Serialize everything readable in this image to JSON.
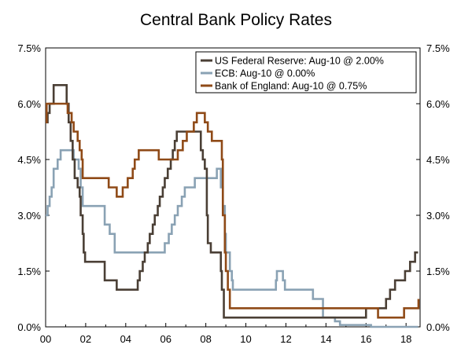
{
  "chart_data": {
    "type": "line",
    "title": "Central Bank Policy Rates",
    "xlabel": "",
    "ylabel": "",
    "xlim": [
      2000,
      2018.7
    ],
    "ylim": [
      0,
      7.5
    ],
    "x_ticks": [
      {
        "value": 2000,
        "label": "00"
      },
      {
        "value": 2002,
        "label": "02"
      },
      {
        "value": 2004,
        "label": "04"
      },
      {
        "value": 2006,
        "label": "06"
      },
      {
        "value": 2008,
        "label": "08"
      },
      {
        "value": 2010,
        "label": "10"
      },
      {
        "value": 2012,
        "label": "12"
      },
      {
        "value": 2014,
        "label": "14"
      },
      {
        "value": 2016,
        "label": "16"
      },
      {
        "value": 2018,
        "label": "18"
      }
    ],
    "y_ticks": [
      {
        "value": 0,
        "label": "0.0%"
      },
      {
        "value": 1.5,
        "label": "1.5%"
      },
      {
        "value": 3,
        "label": "3.0%"
      },
      {
        "value": 4.5,
        "label": "4.5%"
      },
      {
        "value": 6,
        "label": "6.0%"
      },
      {
        "value": 7.5,
        "label": "7.5%"
      }
    ],
    "grid": false,
    "legend_position": "top-right",
    "series": [
      {
        "name": "US Federal Reserve: Aug-10 @ 2.00%",
        "color": "#4a3f35",
        "points": [
          [
            2000,
            5.5
          ],
          [
            2000.1,
            5.75
          ],
          [
            2000.2,
            6.0
          ],
          [
            2000.4,
            6.5
          ],
          [
            2001.0,
            6.5
          ],
          [
            2001.05,
            6.0
          ],
          [
            2001.15,
            5.5
          ],
          [
            2001.25,
            5.0
          ],
          [
            2001.35,
            4.5
          ],
          [
            2001.45,
            4.0
          ],
          [
            2001.6,
            3.75
          ],
          [
            2001.7,
            3.5
          ],
          [
            2001.75,
            3.0
          ],
          [
            2001.85,
            2.5
          ],
          [
            2001.9,
            2.0
          ],
          [
            2001.97,
            1.75
          ],
          [
            2002.9,
            1.75
          ],
          [
            2002.95,
            1.25
          ],
          [
            2003.5,
            1.25
          ],
          [
            2003.55,
            1.0
          ],
          [
            2004.5,
            1.0
          ],
          [
            2004.6,
            1.25
          ],
          [
            2004.7,
            1.5
          ],
          [
            2004.85,
            1.75
          ],
          [
            2004.95,
            2.0
          ],
          [
            2005.1,
            2.25
          ],
          [
            2005.2,
            2.5
          ],
          [
            2005.35,
            2.75
          ],
          [
            2005.45,
            3.0
          ],
          [
            2005.6,
            3.25
          ],
          [
            2005.7,
            3.5
          ],
          [
            2005.85,
            3.75
          ],
          [
            2005.95,
            4.0
          ],
          [
            2006.1,
            4.25
          ],
          [
            2006.25,
            4.5
          ],
          [
            2006.35,
            4.75
          ],
          [
            2006.45,
            5.0
          ],
          [
            2006.55,
            5.25
          ],
          [
            2007.7,
            5.25
          ],
          [
            2007.75,
            4.75
          ],
          [
            2007.85,
            4.5
          ],
          [
            2007.95,
            4.25
          ],
          [
            2008.05,
            3.0
          ],
          [
            2008.1,
            2.25
          ],
          [
            2008.25,
            2.0
          ],
          [
            2008.75,
            1.5
          ],
          [
            2008.8,
            1.0
          ],
          [
            2008.9,
            0.25
          ],
          [
            2015.95,
            0.25
          ],
          [
            2016.0,
            0.5
          ],
          [
            2016.95,
            0.5
          ],
          [
            2017.0,
            0.75
          ],
          [
            2017.2,
            1.0
          ],
          [
            2017.45,
            1.25
          ],
          [
            2017.95,
            1.5
          ],
          [
            2018.2,
            1.75
          ],
          [
            2018.45,
            2.0
          ],
          [
            2018.6,
            2.0
          ]
        ]
      },
      {
        "name": "ECB: Aug-10 @ 0.00%",
        "color": "#8aa2b4",
        "points": [
          [
            2000,
            3.0
          ],
          [
            2000.1,
            3.25
          ],
          [
            2000.2,
            3.5
          ],
          [
            2000.3,
            3.75
          ],
          [
            2000.4,
            4.25
          ],
          [
            2000.6,
            4.5
          ],
          [
            2000.75,
            4.75
          ],
          [
            2001.35,
            4.75
          ],
          [
            2001.4,
            4.5
          ],
          [
            2001.65,
            4.25
          ],
          [
            2001.75,
            3.75
          ],
          [
            2001.85,
            3.25
          ],
          [
            2002.9,
            3.25
          ],
          [
            2002.95,
            2.75
          ],
          [
            2003.2,
            2.5
          ],
          [
            2003.45,
            2.0
          ],
          [
            2005.9,
            2.0
          ],
          [
            2005.95,
            2.25
          ],
          [
            2006.15,
            2.5
          ],
          [
            2006.3,
            2.75
          ],
          [
            2006.45,
            3.0
          ],
          [
            2006.6,
            3.25
          ],
          [
            2006.8,
            3.5
          ],
          [
            2006.95,
            3.75
          ],
          [
            2007.45,
            4.0
          ],
          [
            2008.5,
            4.0
          ],
          [
            2008.55,
            4.25
          ],
          [
            2008.75,
            3.75
          ],
          [
            2008.85,
            3.25
          ],
          [
            2008.95,
            2.5
          ],
          [
            2009.0,
            2.0
          ],
          [
            2009.2,
            1.5
          ],
          [
            2009.3,
            1.25
          ],
          [
            2009.35,
            1.0
          ],
          [
            2011.25,
            1.0
          ],
          [
            2011.5,
            1.25
          ],
          [
            2011.55,
            1.5
          ],
          [
            2011.85,
            1.25
          ],
          [
            2011.95,
            1.0
          ],
          [
            2013.35,
            0.75
          ],
          [
            2013.85,
            0.25
          ],
          [
            2014.45,
            0.15
          ],
          [
            2014.7,
            0.05
          ],
          [
            2016.2,
            0.05
          ],
          [
            2016.25,
            0.0
          ],
          [
            2018.6,
            0.0
          ]
        ]
      },
      {
        "name": "Bank of England: Aug-10 @ 0.75%",
        "color": "#8f4a17",
        "points": [
          [
            2000,
            5.5
          ],
          [
            2000.05,
            6.0
          ],
          [
            2001.05,
            6.0
          ],
          [
            2001.1,
            5.75
          ],
          [
            2001.3,
            5.5
          ],
          [
            2001.4,
            5.25
          ],
          [
            2001.6,
            5.0
          ],
          [
            2001.7,
            4.75
          ],
          [
            2001.8,
            4.5
          ],
          [
            2001.85,
            4.0
          ],
          [
            2003.1,
            4.0
          ],
          [
            2003.15,
            3.75
          ],
          [
            2003.55,
            3.5
          ],
          [
            2003.85,
            3.75
          ],
          [
            2004.1,
            4.0
          ],
          [
            2004.35,
            4.25
          ],
          [
            2004.45,
            4.5
          ],
          [
            2004.65,
            4.75
          ],
          [
            2005.6,
            4.75
          ],
          [
            2005.65,
            4.5
          ],
          [
            2006.55,
            4.5
          ],
          [
            2006.6,
            4.75
          ],
          [
            2006.85,
            5.0
          ],
          [
            2007.05,
            5.25
          ],
          [
            2007.4,
            5.5
          ],
          [
            2007.55,
            5.75
          ],
          [
            2007.9,
            5.75
          ],
          [
            2007.95,
            5.5
          ],
          [
            2008.1,
            5.25
          ],
          [
            2008.3,
            5.0
          ],
          [
            2008.75,
            5.0
          ],
          [
            2008.8,
            4.5
          ],
          [
            2008.85,
            3.0
          ],
          [
            2008.95,
            2.0
          ],
          [
            2009.0,
            1.5
          ],
          [
            2009.1,
            1.0
          ],
          [
            2009.2,
            0.5
          ],
          [
            2016.55,
            0.5
          ],
          [
            2016.6,
            0.25
          ],
          [
            2017.85,
            0.25
          ],
          [
            2017.9,
            0.5
          ],
          [
            2018.6,
            0.5
          ],
          [
            2018.62,
            0.75
          ]
        ]
      }
    ]
  }
}
